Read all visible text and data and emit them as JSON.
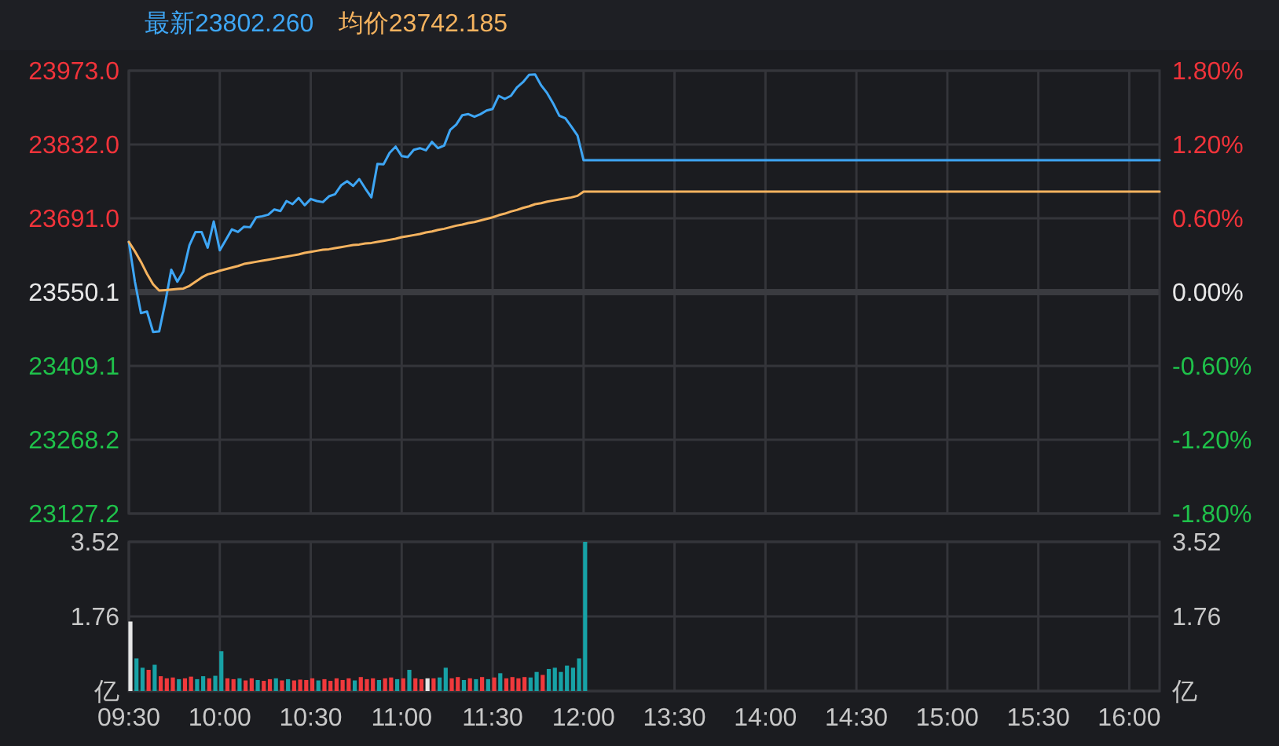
{
  "chart_data": [
    {
      "type": "line",
      "categories": [
        null,
        null,
        null,
        null,
        null,
        null,
        null,
        null,
        null,
        null,
        null,
        null,
        null,
        null,
        null,
        null,
        null,
        null,
        null,
        null,
        null,
        null,
        null,
        null,
        null,
        null,
        null,
        null,
        null,
        null,
        null,
        null,
        null,
        null,
        null,
        null,
        null,
        null,
        null,
        null,
        null,
        null,
        null,
        null,
        null,
        null,
        null,
        null,
        null,
        null,
        null,
        null,
        null,
        null,
        null,
        null,
        null,
        null,
        null,
        null,
        null,
        null,
        null,
        null,
        null,
        null,
        null,
        null,
        null,
        null,
        null,
        null,
        null,
        null,
        null,
        null,
        null,
        null,
        null,
        null,
        null,
        null,
        null,
        null,
        null,
        null,
        null,
        null,
        null,
        null,
        null,
        null,
        null,
        null,
        null,
        null,
        null,
        null,
        null,
        null,
        null,
        null,
        null,
        null,
        null,
        null,
        null,
        null,
        null,
        null,
        null,
        null,
        null,
        null,
        null,
        null,
        null,
        null,
        null,
        null,
        null,
        null,
        null,
        null,
        null,
        null,
        null,
        null,
        null,
        null,
        null,
        null,
        null,
        null,
        null,
        null,
        null,
        null,
        null,
        null,
        null,
        null,
        null,
        null,
        null,
        null,
        null,
        null,
        null,
        null,
        null,
        null,
        null,
        null,
        null,
        null,
        null,
        null,
        null,
        null,
        null,
        null,
        null,
        null,
        null,
        null,
        null,
        null,
        null,
        null,
        null
      ],
      "series": [
        {
          "name": "最新23802.260",
          "color": "#3ea6f5",
          "values": [
            23646,
            23570,
            23510,
            23513,
            23474,
            23475,
            23530,
            23593,
            23570,
            23590,
            23640,
            23665,
            23665,
            23635,
            23685,
            23630,
            23650,
            23670,
            23665,
            23675,
            23674,
            23693,
            23695,
            23698,
            23708,
            23705,
            23724,
            23718,
            23730,
            23716,
            23728,
            23724,
            23722,
            23733,
            23737,
            23754,
            23762,
            23753,
            23766,
            23748,
            23731,
            23795,
            23794,
            23816,
            23828,
            23810,
            23808,
            23822,
            23825,
            23821,
            23837,
            23825,
            23830,
            23860,
            23870,
            23888,
            23890,
            23885,
            23890,
            23897,
            23900,
            23925,
            23919,
            23925,
            23941,
            23951,
            23965,
            23966,
            23945,
            23930,
            23910,
            23887,
            23882,
            23866,
            23849,
            23802,
            23802,
            23802,
            23802,
            23802,
            23802,
            23802,
            23802,
            23802,
            23802,
            23802,
            23802,
            23802,
            23802,
            23802,
            23802,
            23802,
            23802,
            23802,
            23802,
            23802,
            23802,
            23802,
            23802,
            23802,
            23802,
            23802,
            23802,
            23802,
            23802,
            23802,
            23802,
            23802,
            23802,
            23802,
            23802,
            23802,
            23802,
            23802,
            23802,
            23802,
            23802,
            23802,
            23802,
            23802,
            23802,
            23802,
            23802,
            23802,
            23802,
            23802,
            23802,
            23802,
            23802,
            23802,
            23802,
            23802,
            23802,
            23802,
            23802,
            23802,
            23802,
            23802,
            23802,
            23802,
            23802,
            23802,
            23802,
            23802,
            23802,
            23802,
            23802,
            23802,
            23802,
            23802,
            23802,
            23802,
            23802,
            23802,
            23802,
            23802,
            23802,
            23802,
            23802,
            23802,
            23802,
            23802,
            23802,
            23802,
            23802,
            23802,
            23802,
            23802,
            23802,
            23802,
            23802
          ]
        },
        {
          "name": "均价23742.185",
          "color": "#f5b35f",
          "values": [
            23646,
            23628,
            23608,
            23585,
            23565,
            23553,
            23554,
            23555,
            23556,
            23557,
            23562,
            23570,
            23578,
            23584,
            23587,
            23591,
            23594,
            23597,
            23600,
            23604,
            23606,
            23608,
            23610,
            23612,
            23614,
            23616,
            23618,
            23620,
            23622,
            23625,
            23627,
            23629,
            23631,
            23632,
            23634,
            23636,
            23638,
            23640,
            23641,
            23643,
            23644,
            23646,
            23648,
            23650,
            23652,
            23655,
            23657,
            23659,
            23661,
            23664,
            23666,
            23669,
            23671,
            23674,
            23677,
            23679,
            23682,
            23684,
            23687,
            23690,
            23693,
            23697,
            23700,
            23704,
            23707,
            23711,
            23714,
            23718,
            23720,
            23723,
            23725,
            23727,
            23729,
            23731,
            23734,
            23742,
            23742,
            23742,
            23742,
            23742,
            23742,
            23742,
            23742,
            23742,
            23742,
            23742,
            23742,
            23742,
            23742,
            23742,
            23742,
            23742,
            23742,
            23742,
            23742,
            23742,
            23742,
            23742,
            23742,
            23742,
            23742,
            23742,
            23742,
            23742,
            23742,
            23742,
            23742,
            23742,
            23742,
            23742,
            23742,
            23742,
            23742,
            23742,
            23742,
            23742,
            23742,
            23742,
            23742,
            23742,
            23742,
            23742,
            23742,
            23742,
            23742,
            23742,
            23742,
            23742,
            23742,
            23742,
            23742,
            23742,
            23742,
            23742,
            23742,
            23742,
            23742,
            23742,
            23742,
            23742,
            23742,
            23742,
            23742,
            23742,
            23742,
            23742,
            23742,
            23742,
            23742,
            23742,
            23742,
            23742,
            23742,
            23742,
            23742,
            23742,
            23742,
            23742,
            23742,
            23742,
            23742,
            23742,
            23742,
            23742,
            23742,
            23742,
            23742,
            23742,
            23742,
            23742,
            23742
          ]
        }
      ],
      "ylim": [
        23127.2,
        23973.0
      ],
      "yticks": [
        {
          "value": 23127.2,
          "label": "23127.2"
        },
        {
          "value": 23268.2,
          "label": "23268.2"
        },
        {
          "value": 23409.1,
          "label": "23409.1"
        },
        {
          "value": 23550.1,
          "label": "23550.1"
        },
        {
          "value": 23691.0,
          "label": "23691.0"
        },
        {
          "value": 23832.0,
          "label": "23832.0"
        },
        {
          "value": 23973.0,
          "label": "23973.0"
        }
      ],
      "y2lim": [
        -1.8,
        1.8
      ],
      "y2ticks": [
        {
          "value": -1.8,
          "label": "-1.80%"
        },
        {
          "value": -1.2,
          "label": "-1.20%"
        },
        {
          "value": -0.6,
          "label": "-0.60%"
        },
        {
          "value": 0,
          "label": "0.00%"
        },
        {
          "value": 0.6,
          "label": "0.60%"
        },
        {
          "value": 1.2,
          "label": "1.20%"
        },
        {
          "value": 1.8,
          "label": "1.80%"
        }
      ],
      "grid": true,
      "legend": "top left",
      "tick_labels": "y",
      "ref_lines": [
        {
          "axis": "y2",
          "value": 0,
          "color": "#3a3b40"
        }
      ]
    },
    {
      "type": "bar",
      "categories": [
        "09:30",
        null,
        null,
        null,
        null,
        null,
        null,
        null,
        null,
        null,
        null,
        null,
        null,
        null,
        null,
        "10:00",
        null,
        null,
        null,
        null,
        null,
        null,
        null,
        null,
        null,
        null,
        null,
        null,
        null,
        null,
        "10:30",
        null,
        null,
        null,
        null,
        null,
        null,
        null,
        null,
        null,
        null,
        null,
        null,
        null,
        null,
        "11:00",
        null,
        null,
        null,
        null,
        null,
        null,
        null,
        null,
        null,
        null,
        null,
        null,
        null,
        null,
        "11:30",
        null,
        null,
        null,
        null,
        null,
        null,
        null,
        null,
        null,
        null,
        null,
        null,
        null,
        null,
        "12:00",
        null,
        null,
        null,
        null,
        null,
        null,
        null,
        null,
        null,
        null,
        null,
        null,
        null,
        null,
        "13:30",
        null,
        null,
        null,
        null,
        null,
        null,
        null,
        null,
        null,
        null,
        null,
        null,
        null,
        null,
        "14:00",
        null,
        null,
        null,
        null,
        null,
        null,
        null,
        null,
        null,
        null,
        null,
        null,
        null,
        null,
        "14:30",
        null,
        null,
        null,
        null,
        null,
        null,
        null,
        null,
        null,
        null,
        null,
        null,
        null,
        null,
        "15:00",
        null,
        null,
        null,
        null,
        null,
        null,
        null,
        null,
        null,
        null,
        null,
        null,
        null,
        null,
        "15:30",
        null,
        null,
        null,
        null,
        null,
        null,
        null,
        null,
        null,
        null,
        null,
        null,
        null,
        null,
        "16:00",
        null,
        null,
        null,
        null,
        null
      ],
      "values": [
        1.64,
        0.77,
        0.55,
        0.5,
        0.62,
        0.35,
        0.3,
        0.32,
        0.28,
        0.3,
        0.34,
        0.28,
        0.35,
        0.3,
        0.36,
        0.94,
        0.3,
        0.28,
        0.3,
        0.25,
        0.3,
        0.26,
        0.24,
        0.28,
        0.3,
        0.25,
        0.28,
        0.25,
        0.27,
        0.26,
        0.3,
        0.25,
        0.28,
        0.24,
        0.3,
        0.26,
        0.3,
        0.25,
        0.33,
        0.28,
        0.3,
        0.26,
        0.3,
        0.32,
        0.28,
        0.3,
        0.5,
        0.3,
        0.28,
        0.3,
        0.3,
        0.32,
        0.55,
        0.3,
        0.33,
        0.26,
        0.3,
        0.28,
        0.33,
        0.28,
        0.32,
        0.42,
        0.3,
        0.33,
        0.3,
        0.33,
        0.32,
        0.45,
        0.38,
        0.52,
        0.55,
        0.45,
        0.6,
        0.55,
        0.77,
        3.52,
        null,
        null,
        null,
        null,
        null,
        null,
        null,
        null,
        null,
        null,
        null,
        null,
        null,
        null,
        null,
        null,
        null,
        null,
        null,
        null,
        null,
        null,
        null,
        null,
        null,
        null,
        null,
        null,
        null,
        null,
        null,
        null,
        null,
        null,
        null,
        null,
        null,
        null,
        null,
        null,
        null,
        null,
        null,
        null,
        null,
        null,
        null,
        null,
        null,
        null,
        null,
        null,
        null,
        null,
        null,
        null,
        null,
        null,
        null,
        null,
        null,
        null,
        null,
        null,
        null,
        null,
        null,
        null,
        null,
        null,
        null,
        null,
        null,
        null,
        null,
        null,
        null,
        null,
        null,
        null,
        null,
        null,
        null,
        null,
        null,
        null,
        null,
        null,
        null,
        null,
        null,
        null,
        null,
        null,
        null
      ],
      "colors": [
        "#e6e6e6",
        "#17a2a6",
        "#17a2a6",
        "#f0393c",
        "#17a2a6",
        "#f0393c",
        "#f0393c",
        "#f0393c",
        "#17a2a6",
        "#f0393c",
        "#f0393c",
        "#17a2a6",
        "#17a2a6",
        "#f0393c",
        "#17a2a6",
        "#17a2a6",
        "#f0393c",
        "#f0393c",
        "#17a2a6",
        "#f0393c",
        "#f0393c",
        "#17a2a6",
        "#f0393c",
        "#f0393c",
        "#17a2a6",
        "#f0393c",
        "#17a2a6",
        "#f0393c",
        "#f0393c",
        "#f0393c",
        "#f0393c",
        "#17a2a6",
        "#f0393c",
        "#f0393c",
        "#f0393c",
        "#f0393c",
        "#f0393c",
        "#17a2a6",
        "#f0393c",
        "#f0393c",
        "#f0393c",
        "#17a2a6",
        "#f0393c",
        "#f0393c",
        "#17a2a6",
        "#f0393c",
        "#17a2a6",
        "#f0393c",
        "#f0393c",
        "#e6e6e6",
        "#f0393c",
        "#17a2a6",
        "#17a2a6",
        "#f0393c",
        "#f0393c",
        "#17a2a6",
        "#f0393c",
        "#17a2a6",
        "#f0393c",
        "#17a2a6",
        "#f0393c",
        "#17a2a6",
        "#f0393c",
        "#f0393c",
        "#f0393c",
        "#f0393c",
        "#17a2a6",
        "#17a2a6",
        "#f0393c",
        "#17a2a6",
        "#17a2a6",
        "#17a2a6",
        "#17a2a6",
        "#17a2a6",
        "#17a2a6",
        "#17a2a6",
        null,
        null,
        null,
        null,
        null,
        null,
        null,
        null,
        null,
        null,
        null,
        null,
        null,
        null,
        null,
        null,
        null,
        null,
        null,
        null,
        null,
        null,
        null,
        null,
        null,
        null,
        null,
        null,
        null,
        null,
        null,
        null,
        null,
        null,
        null,
        null,
        null,
        null,
        null,
        null,
        null,
        null,
        null,
        null,
        null,
        null,
        null,
        null,
        null,
        null,
        null,
        null,
        null,
        null,
        null,
        null,
        null,
        null,
        null,
        null,
        null,
        null,
        null,
        null,
        null,
        null,
        null,
        null,
        null,
        null,
        null,
        null,
        null,
        null,
        null,
        null,
        null,
        null,
        null,
        null,
        null,
        null,
        null,
        null,
        null,
        null,
        null,
        null,
        null,
        null,
        null,
        null,
        null,
        null,
        null
      ],
      "ylim": [
        0,
        3.52
      ],
      "yticks": [
        {
          "value": 0,
          "label": "亿"
        },
        1.76,
        3.52
      ],
      "y2lim": [
        0,
        3.52
      ],
      "y2ticks": [
        {
          "value": 0,
          "label": "亿"
        },
        1.76,
        3.52
      ],
      "grid": true
    }
  ]
}
